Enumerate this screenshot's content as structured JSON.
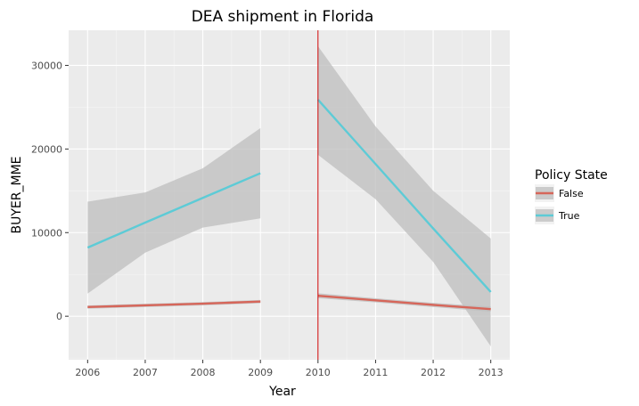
{
  "chart_data": {
    "type": "line",
    "title": "DEA shipment in Florida",
    "xlabel": "Year",
    "ylabel": "BUYER_MME",
    "x_ticks": [
      2006,
      2007,
      2008,
      2009,
      2010,
      2011,
      2012,
      2013
    ],
    "y_ticks": [
      0,
      10000,
      20000,
      30000
    ],
    "xlim": [
      2005.67,
      2013.33
    ],
    "ylim": [
      -5200,
      34200
    ],
    "vline": {
      "x": 2010,
      "color": "#cc0000"
    },
    "legend": {
      "title": "Policy State",
      "position": "right",
      "entries": [
        {
          "label": "False",
          "color": "#d6665a"
        },
        {
          "label": "True",
          "color": "#5dcbd6"
        }
      ]
    },
    "colors": {
      "panel": "#ebebeb",
      "grid_major": "#ffffff",
      "grid_minor": "#f5f5f5",
      "ribbon": "#bdbdbd"
    },
    "series": [
      {
        "name": "True",
        "color": "#5dcbd6",
        "segments": [
          {
            "x": [
              2006,
              2007,
              2008,
              2009
            ],
            "y": [
              8200,
              11200,
              14150,
              17100
            ],
            "lower": [
              2700,
              7600,
              10600,
              11700
            ],
            "upper": [
              13700,
              14800,
              17700,
              22500
            ]
          },
          {
            "x": [
              2010,
              2011,
              2012,
              2013
            ],
            "y": [
              25900,
              18200,
              10500,
              2900
            ],
            "lower": [
              19300,
              14000,
              6500,
              -3600
            ],
            "upper": [
              32300,
              22700,
              15000,
              9300
            ]
          }
        ]
      },
      {
        "name": "False",
        "color": "#d6665a",
        "segments": [
          {
            "x": [
              2006,
              2007,
              2008,
              2009
            ],
            "y": [
              1100,
              1300,
              1500,
              1750
            ],
            "lower": [
              900,
              1100,
              1300,
              1550
            ],
            "upper": [
              1300,
              1500,
              1700,
              1950
            ]
          },
          {
            "x": [
              2010,
              2011,
              2012,
              2013
            ],
            "y": [
              2450,
              1900,
              1350,
              850
            ],
            "lower": [
              2150,
              1650,
              1100,
              550
            ],
            "upper": [
              2750,
              2150,
              1600,
              1150
            ]
          }
        ]
      }
    ]
  }
}
